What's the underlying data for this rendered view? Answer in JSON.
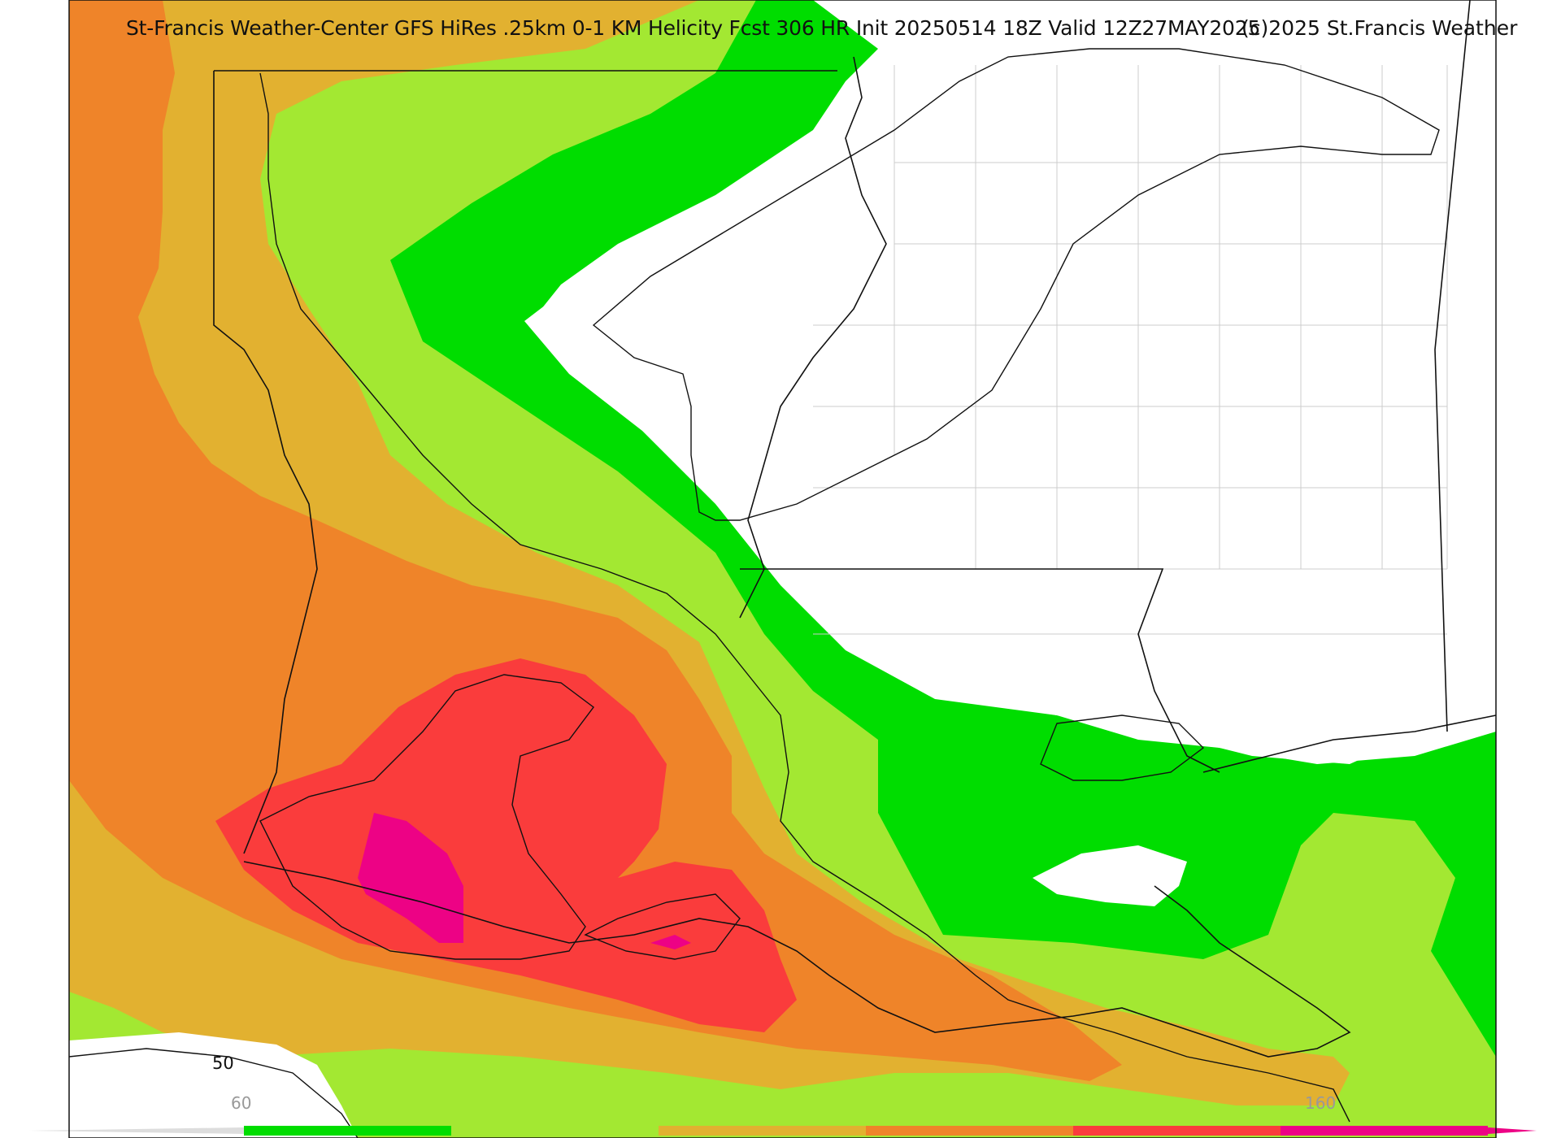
{
  "title": "St-Francis Weather-Center GFS HiRes .25km 0-1 KM Helicity Fcst 306 HR Init 20250514 18Z  Valid 12Z27MAY2025",
  "copyright": "(c)2025 St.Francis Weather",
  "contour_label": "50",
  "colorbar": {
    "tick_labels": [
      "60",
      "160"
    ],
    "bins": [
      {
        "color": "#00dd00"
      },
      {
        "color": "#a3e832"
      },
      {
        "color": "#e2b130"
      },
      {
        "color": "#ef8429"
      },
      {
        "color": "#fa3c3c"
      },
      {
        "color": "#ed0285"
      }
    ]
  },
  "colors": {
    "border": "#111111",
    "county_lines": "#cccccc",
    "background": "#ffffff"
  }
}
